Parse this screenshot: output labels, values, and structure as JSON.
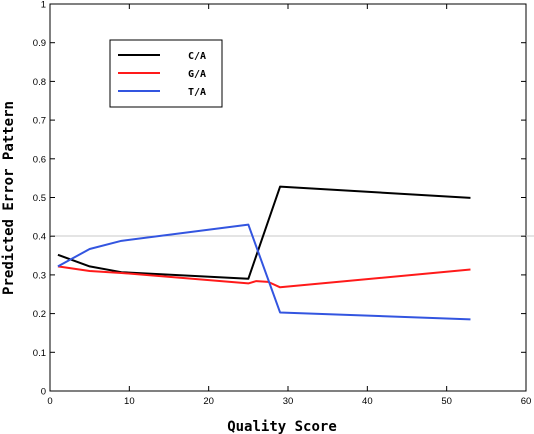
{
  "chart_data": {
    "type": "line",
    "xlabel": "Quality Score",
    "ylabel": "Predicted Error Pattern",
    "xlim": [
      0,
      60
    ],
    "ylim": [
      0,
      1
    ],
    "xticks": [
      0,
      10,
      20,
      30,
      40,
      50,
      60
    ],
    "yticks": [
      0,
      0.1,
      0.2,
      0.3,
      0.4,
      0.5,
      0.6,
      0.7,
      0.8,
      0.9,
      1
    ],
    "xtick_labels": [
      "0",
      "10",
      "20",
      "30",
      "40",
      "50",
      "60"
    ],
    "ytick_labels": [
      "0",
      "0.1",
      "0.2",
      "0.3",
      "0.4",
      "0.5",
      "0.6",
      "0.7",
      "0.8",
      "0.9",
      "1"
    ],
    "grid": false,
    "legend_position": "top-left",
    "series": [
      {
        "name": "C/A",
        "color": "#000000",
        "points": [
          [
            1,
            0.352
          ],
          [
            5,
            0.322
          ],
          [
            9,
            0.307
          ],
          [
            25,
            0.29
          ],
          [
            29,
            0.528
          ],
          [
            53,
            0.499
          ]
        ]
      },
      {
        "name": "G/A",
        "color": "#ff1a1a",
        "points": [
          [
            1,
            0.322
          ],
          [
            5,
            0.31
          ],
          [
            9,
            0.305
          ],
          [
            25,
            0.278
          ],
          [
            26,
            0.284
          ],
          [
            27.5,
            0.282
          ],
          [
            29,
            0.268
          ],
          [
            53,
            0.314
          ]
        ]
      },
      {
        "name": "T/A",
        "color": "#3355e0",
        "points": [
          [
            1,
            0.322
          ],
          [
            5,
            0.367
          ],
          [
            9,
            0.388
          ],
          [
            25,
            0.43
          ],
          [
            29,
            0.203
          ],
          [
            53,
            0.185
          ]
        ]
      }
    ]
  }
}
